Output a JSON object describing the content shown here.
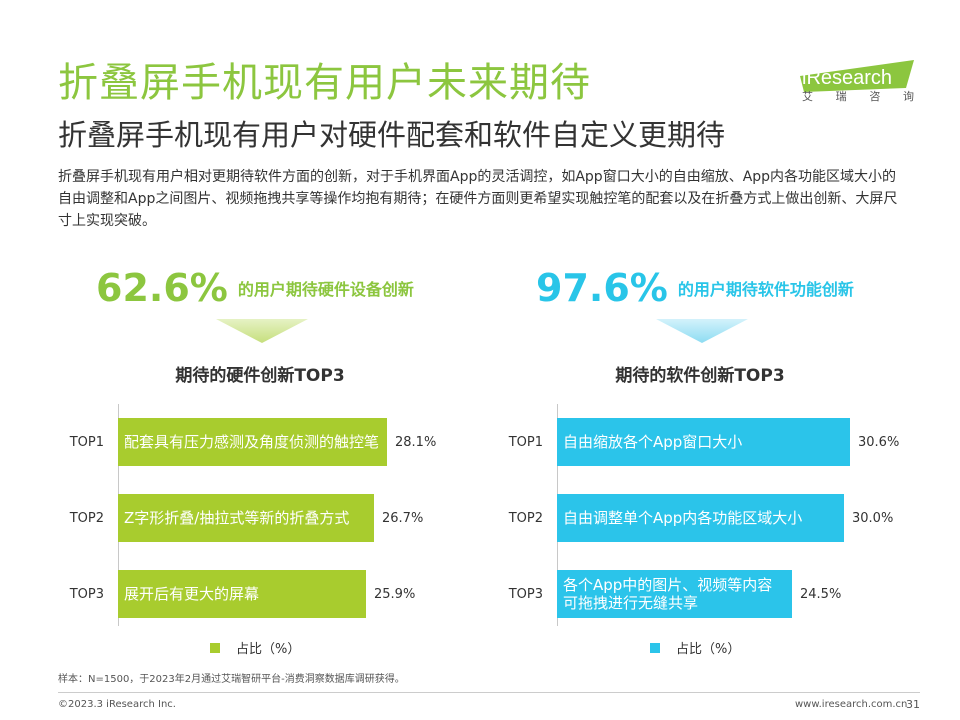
{
  "header": {
    "title": "折叠屏手机现有用户未来期待",
    "subtitle": "折叠屏手机现有用户对硬件配套和软件自定义更期待",
    "description": "折叠屏手机现有用户相对更期待软件方面的创新，对于手机界面App的灵活调控，如App窗口大小的自由缩放、App内各功能区域大小的自由调整和App之间图片、视频拖拽共享等操作均抱有期待；在硬件方面则更希望实现触控笔的配套以及在折叠方式上做出创新、大屏尺寸上实现突破。"
  },
  "logo": {
    "name": "iResearch",
    "chars": [
      "艾",
      "瑞",
      "咨",
      "询"
    ],
    "color": "#8cc63f"
  },
  "stats": [
    {
      "value": "62.6%",
      "label": "的用户期待硬件设备创新",
      "color": "#8cc63f"
    },
    {
      "value": "97.6%",
      "label": "的用户期待软件功能创新",
      "color": "#29c5e8"
    }
  ],
  "chart_data": [
    {
      "type": "bar",
      "orientation": "horizontal",
      "title": "期待的硬件创新TOP3",
      "color": "#a8cc2e",
      "categories": [
        "TOP1",
        "TOP2",
        "TOP3"
      ],
      "bar_labels": [
        "配套具有压力感测及角度侦测的触控笔",
        "Z字形折叠/抽拉式等新的折叠方式",
        "展开后有更大的屏幕"
      ],
      "values": [
        28.1,
        26.7,
        25.9
      ],
      "value_labels": [
        "28.1%",
        "26.7%",
        "25.9%"
      ],
      "xlim": [
        0,
        30.6
      ],
      "legend": "占比（%）"
    },
    {
      "type": "bar",
      "orientation": "horizontal",
      "title": "期待的软件创新TOP3",
      "color": "#2bc4ea",
      "categories": [
        "TOP1",
        "TOP2",
        "TOP3"
      ],
      "bar_labels": [
        "自由缩放各个App窗口大小",
        "自由调整单个App内各功能区域大小",
        "各个App中的图片、视频等内容可拖拽进行无缝共享"
      ],
      "values": [
        30.6,
        30.0,
        24.5
      ],
      "value_labels": [
        "30.6%",
        "30.0%",
        "24.5%"
      ],
      "xlim": [
        0,
        30.6
      ],
      "legend": "占比（%）"
    }
  ],
  "footer": {
    "note": "样本：N=1500，于2023年2月通过艾瑞智研平台-消费洞察数据库调研获得。",
    "copyright": "©2023.3 iResearch Inc.",
    "url": "www.iresearch.com.cn",
    "page": "31"
  }
}
